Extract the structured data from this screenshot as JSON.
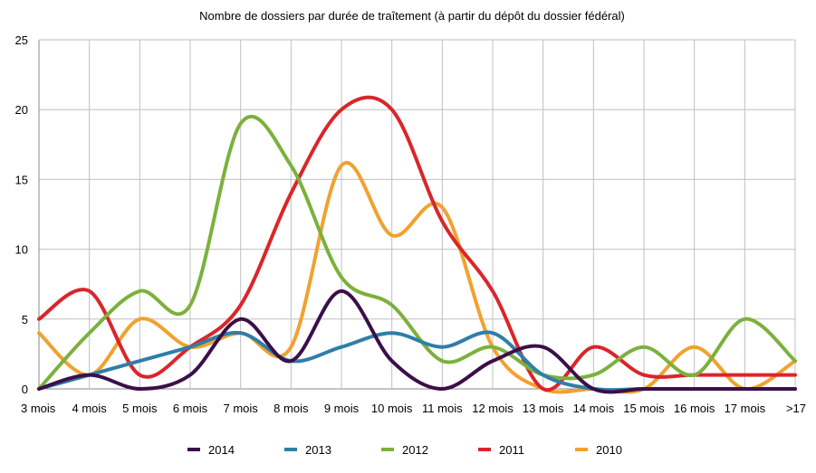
{
  "chart_data": {
    "type": "line",
    "title": "Nombre de dossiers par durée de traîtement (à partir du dépôt du dossier fédéral)",
    "xlabel": "",
    "ylabel": "",
    "categories": [
      "3 mois",
      "4 mois",
      "5 mois",
      "6 mois",
      "7 mois",
      "8 mois",
      "9 mois",
      "10 mois",
      "11 mois",
      "12 mois",
      "13 mois",
      "14 mois",
      "15 mois",
      "16 mois",
      "17 mois",
      ">17"
    ],
    "ylim": [
      0,
      25
    ],
    "yticks": [
      "0",
      "5",
      "10",
      "15",
      "20",
      "25"
    ],
    "grid": true,
    "legend_position": "bottom",
    "series": [
      {
        "name": "2014",
        "color": "#3b0f4a",
        "values": [
          0,
          1,
          0,
          1,
          5,
          2,
          7,
          2,
          0,
          2,
          3,
          0,
          0,
          0,
          0,
          0
        ]
      },
      {
        "name": "2013",
        "color": "#2f7ea8",
        "values": [
          0,
          1,
          2,
          3,
          4,
          2,
          3,
          4,
          3,
          4,
          1,
          0,
          0,
          0,
          0,
          0
        ]
      },
      {
        "name": "2012",
        "color": "#7bb13c",
        "values": [
          0,
          4,
          7,
          6,
          19,
          16,
          8,
          6,
          2,
          3,
          1,
          1,
          3,
          1,
          5,
          2
        ]
      },
      {
        "name": "2011",
        "color": "#d9262a",
        "values": [
          5,
          7,
          1,
          3,
          6,
          14,
          20,
          20,
          12,
          7,
          0,
          3,
          1,
          1,
          1,
          1
        ]
      },
      {
        "name": "2010",
        "color": "#f0a22f",
        "values": [
          4,
          1,
          5,
          3,
          4,
          3,
          16,
          11,
          13,
          3,
          0,
          0,
          0,
          3,
          0,
          2
        ]
      }
    ]
  }
}
